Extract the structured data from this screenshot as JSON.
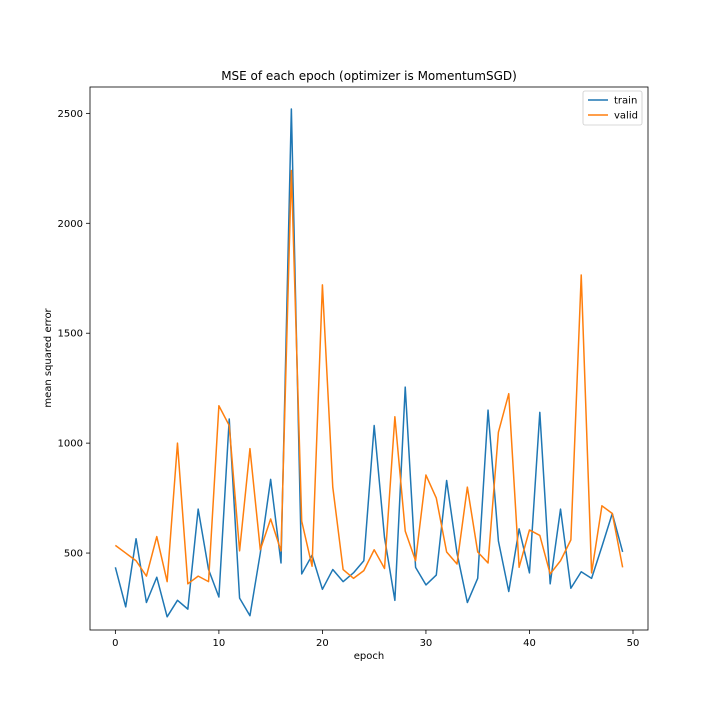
{
  "chart_data": {
    "type": "line",
    "title": "MSE of each epoch (optimizer is MomentumSGD)",
    "xlabel": "epoch",
    "ylabel": "mean squared error",
    "xlim": [
      -2.45,
      51.45
    ],
    "ylim": [
      150,
      2620
    ],
    "xticks": [
      0,
      10,
      20,
      30,
      40,
      50
    ],
    "yticks": [
      500,
      1000,
      1500,
      2000,
      2500
    ],
    "grid": false,
    "legend_position": "top-right",
    "x": [
      0,
      1,
      2,
      3,
      4,
      5,
      6,
      7,
      8,
      9,
      10,
      11,
      12,
      13,
      14,
      15,
      16,
      17,
      18,
      19,
      20,
      21,
      22,
      23,
      24,
      25,
      26,
      27,
      28,
      29,
      30,
      31,
      32,
      33,
      34,
      35,
      36,
      37,
      38,
      39,
      40,
      41,
      42,
      43,
      44,
      45,
      46,
      47,
      48,
      49
    ],
    "series": [
      {
        "name": "train",
        "color": "#1f77b4",
        "values": [
          435,
          255,
          565,
          275,
          390,
          210,
          285,
          245,
          700,
          425,
          300,
          1110,
          295,
          215,
          500,
          835,
          455,
          2520,
          405,
          490,
          335,
          425,
          370,
          410,
          465,
          1080,
          570,
          285,
          1255,
          435,
          355,
          400,
          830,
          500,
          275,
          385,
          1150,
          555,
          325,
          610,
          410,
          1140,
          360,
          700,
          340,
          415,
          385,
          530,
          680,
          505
        ]
      },
      {
        "name": "valid",
        "color": "#ff7f0e",
        "values": [
          535,
          500,
          465,
          395,
          575,
          370,
          1000,
          360,
          395,
          370,
          1170,
          1080,
          510,
          975,
          515,
          655,
          510,
          2240,
          645,
          440,
          1720,
          800,
          425,
          385,
          420,
          515,
          430,
          1120,
          600,
          465,
          855,
          750,
          505,
          450,
          800,
          505,
          455,
          1050,
          1225,
          435,
          605,
          580,
          405,
          465,
          560,
          1765,
          410,
          715,
          680,
          435
        ]
      }
    ]
  }
}
